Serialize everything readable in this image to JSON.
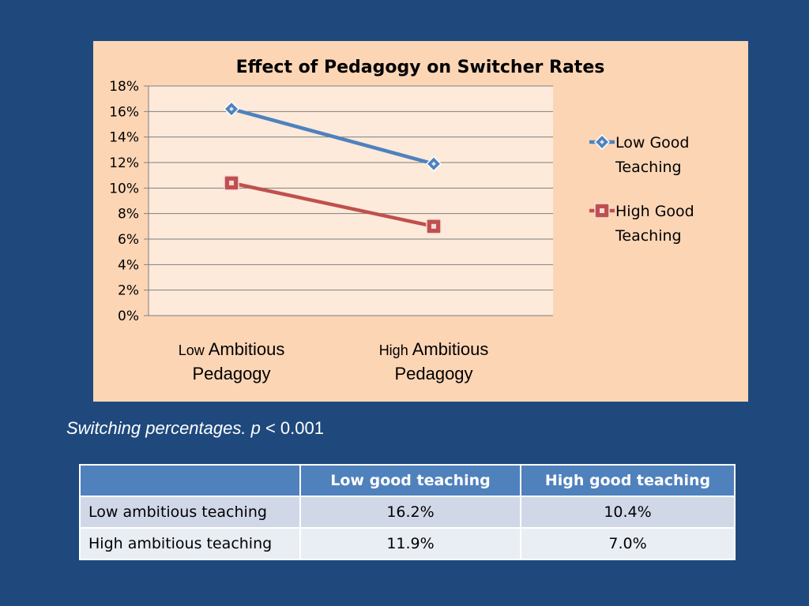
{
  "chart_data": {
    "type": "line",
    "title": "Effect of Pedagogy on Switcher Rates",
    "categories": [
      {
        "prefix": "Low",
        "line1": "Ambitious",
        "line2": "Pedagogy"
      },
      {
        "prefix": "High",
        "line1": "Ambitious",
        "line2": "Pedagogy"
      }
    ],
    "series": [
      {
        "name": "Low Good Teaching",
        "name_lines": [
          "Low Good",
          "Teaching"
        ],
        "values": [
          16.2,
          11.9
        ],
        "color": "#4f81bd",
        "marker": "diamond"
      },
      {
        "name": "High Good Teaching",
        "name_lines": [
          "High Good",
          "Teaching"
        ],
        "values": [
          10.4,
          7.0
        ],
        "color": "#c0504d",
        "marker": "square"
      }
    ],
    "ylim": [
      0,
      18
    ],
    "yticks": [
      "0%",
      "2%",
      "4%",
      "6%",
      "8%",
      "10%",
      "12%",
      "14%",
      "16%",
      "18%"
    ],
    "ytick_values": [
      0,
      2,
      4,
      6,
      8,
      10,
      12,
      14,
      16,
      18
    ],
    "grid": true,
    "legend_position": "right",
    "plot_background": "#fdeada",
    "panel_background": "#fcd5b5"
  },
  "caption": {
    "text": "Switching percentages.",
    "p": "p",
    "rest": "< 0.001"
  },
  "table": {
    "headers": [
      "",
      "Low good teaching",
      "High good teaching"
    ],
    "rows": [
      {
        "label": "Low ambitious teaching",
        "low_good": "16.2%",
        "high_good": "10.4%"
      },
      {
        "label": "High ambitious teaching",
        "low_good": "11.9%",
        "high_good": "7.0%"
      }
    ],
    "header_color": "#4f81bd"
  },
  "background": "#1f497d"
}
